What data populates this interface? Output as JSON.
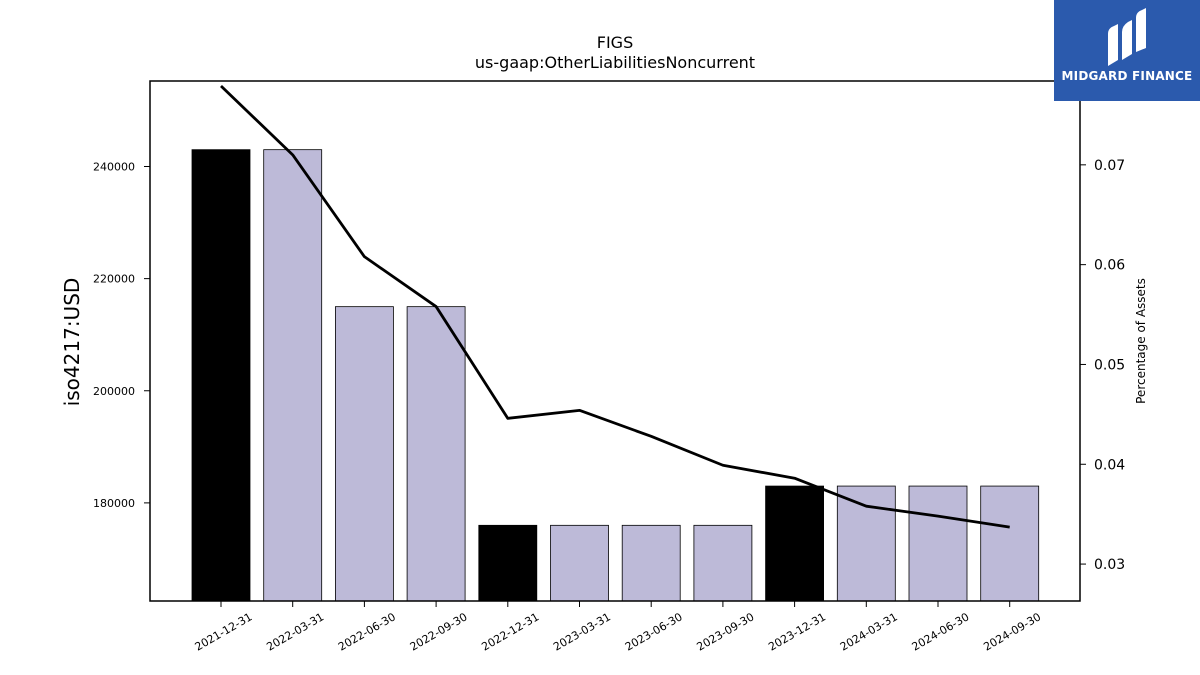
{
  "logo": {
    "text": "MIDGARD FINANCE",
    "color": "#2b5aad"
  },
  "chart_data": {
    "type": "bar",
    "title": "FIGS",
    "subtitle": "us-gaap:OtherLiabilitiesNoncurrent",
    "ylabel": "iso4217:USD",
    "y2label": "Percentage of Assets",
    "categories": [
      "2021-12-31",
      "2022-03-31",
      "2022-06-30",
      "2022-09-30",
      "2022-12-31",
      "2023-03-31",
      "2023-06-30",
      "2023-09-30",
      "2023-12-31",
      "2024-03-31",
      "2024-06-30",
      "2024-09-30"
    ],
    "values": [
      243000,
      243000,
      215000,
      215000,
      176000,
      176000,
      176000,
      176000,
      183000,
      183000,
      183000,
      183000
    ],
    "bar_colors": [
      "#000000",
      "#bdbad8",
      "#bdbad8",
      "#bdbad8",
      "#000000",
      "#bdbad8",
      "#bdbad8",
      "#bdbad8",
      "#000000",
      "#bdbad8",
      "#bdbad8",
      "#bdbad8"
    ],
    "line_series": {
      "axis": "right",
      "values": [
        0.0779,
        0.071,
        0.0608,
        0.0558,
        0.0446,
        0.0454,
        0.0428,
        0.0399,
        0.0386,
        0.0358,
        0.0348,
        0.0337
      ]
    },
    "ylim": [
      162500,
      255250
    ],
    "y_ticks": [
      180000,
      200000,
      220000,
      240000
    ],
    "y2lim": [
      0.0263,
      0.0784
    ],
    "y2_ticks": [
      0.03,
      0.04,
      0.05,
      0.06,
      0.07
    ],
    "y2_tick_labels": [
      "0.03",
      "0.04",
      "0.05",
      "0.06",
      "0.07"
    ],
    "grid": false
  }
}
